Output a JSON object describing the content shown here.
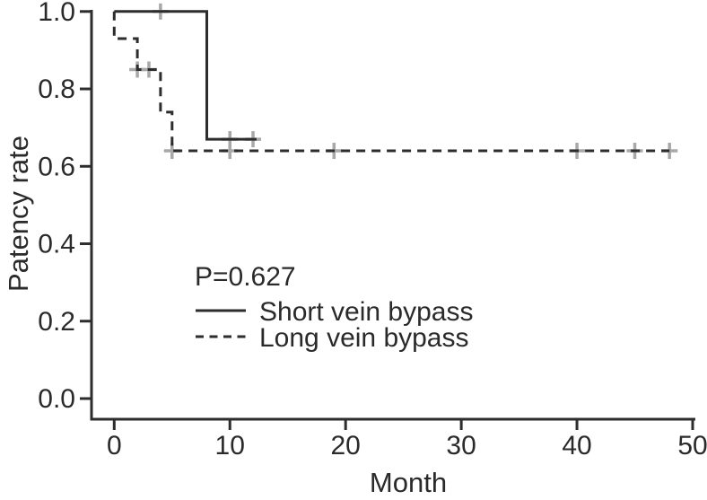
{
  "figure": {
    "background": "#ffffff",
    "curve_color": "#2d2d2d",
    "axis_color": "#2d2d2d",
    "censor_color": "#a8a8a8",
    "text_color": "#2a2a2a"
  },
  "chart_data": {
    "type": "line",
    "subtype": "kaplan-meier-step-curve",
    "title": "",
    "xlabel": "Month",
    "ylabel": "Patency rate",
    "xlim": [
      0,
      50
    ],
    "ylim": [
      0.0,
      1.0
    ],
    "xticks": [
      0,
      10,
      20,
      30,
      40,
      50
    ],
    "yticks": [
      0.0,
      0.2,
      0.4,
      0.6,
      0.8,
      1.0
    ],
    "grid": false,
    "annotation": "P=0.627",
    "legend_position": "inside-lower-left",
    "series": [
      {
        "name": "Short vein bypass",
        "line_style": "solid",
        "points": [
          [
            0,
            1.0
          ],
          [
            8,
            1.0
          ],
          [
            8,
            0.67
          ],
          [
            12.3,
            0.67
          ]
        ],
        "censor_marks": [
          [
            4,
            1.0
          ],
          [
            10,
            0.67
          ],
          [
            12,
            0.67
          ]
        ]
      },
      {
        "name": "Long vein bypass",
        "line_style": "dashed",
        "points": [
          [
            0,
            1.0
          ],
          [
            0,
            0.93
          ],
          [
            2,
            0.93
          ],
          [
            2,
            0.85
          ],
          [
            4,
            0.85
          ],
          [
            4,
            0.74
          ],
          [
            5,
            0.74
          ],
          [
            5,
            0.64
          ],
          [
            48,
            0.64
          ]
        ],
        "censor_marks": [
          [
            2,
            0.85
          ],
          [
            3,
            0.85
          ],
          [
            5,
            0.64
          ],
          [
            10,
            0.64
          ],
          [
            19,
            0.64
          ],
          [
            40,
            0.64
          ],
          [
            45,
            0.64
          ],
          [
            48,
            0.64
          ]
        ]
      }
    ]
  }
}
